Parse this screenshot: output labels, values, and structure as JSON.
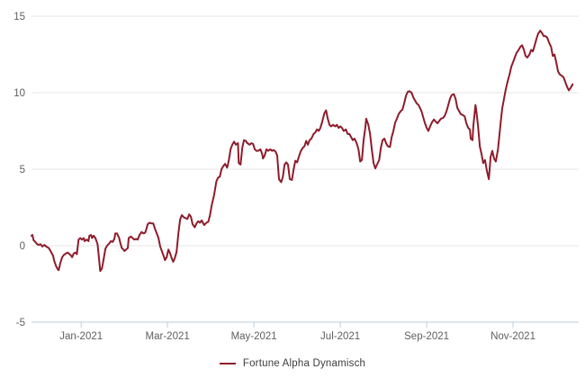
{
  "chart_data": {
    "type": "line",
    "title": "",
    "xlabel": "",
    "ylabel": "",
    "x_unit": "months relative to the Jan-2021 tick",
    "x_range": [
      -1.15,
      11.52
    ],
    "y_range": [
      -5,
      15
    ],
    "grid": true,
    "grid_color": "#e6e6e6",
    "axis_line_color": "#b9cedf",
    "tick_label_color": "#5f5f5f",
    "background_color": "#ffffff",
    "y_ticks": [
      {
        "v": -5,
        "label": "-5"
      },
      {
        "v": 0,
        "label": "0"
      },
      {
        "v": 5,
        "label": "5"
      },
      {
        "v": 10,
        "label": "10"
      },
      {
        "v": 15,
        "label": "15"
      }
    ],
    "x_ticks": [
      {
        "t": 0,
        "label": "Jan-2021"
      },
      {
        "t": 2,
        "label": "Mar-2021"
      },
      {
        "t": 4,
        "label": "May-2021"
      },
      {
        "t": 6,
        "label": "Jul-2021"
      },
      {
        "t": 8,
        "label": "Sep-2021"
      },
      {
        "t": 10,
        "label": "Nov-2021"
      }
    ],
    "legend": {
      "label": "Fortune Alpha Dynamisch",
      "position": "bottom-center"
    },
    "series": [
      {
        "name": "Fortune Alpha Dynamisch",
        "color": "#8e1c2b",
        "line_width": 2,
        "points": [
          [
            -1.15,
            0.65
          ],
          [
            -1.13,
            0.7
          ],
          [
            -1.1,
            0.35
          ],
          [
            -1.06,
            0.25
          ],
          [
            -1.02,
            0.1
          ],
          [
            -0.98,
            0.05
          ],
          [
            -0.94,
            0.1
          ],
          [
            -0.9,
            -0.05
          ],
          [
            -0.85,
            0.05
          ],
          [
            -0.81,
            -0.05
          ],
          [
            -0.75,
            -0.15
          ],
          [
            -0.73,
            -0.25
          ],
          [
            -0.69,
            -0.45
          ],
          [
            -0.65,
            -0.65
          ],
          [
            -0.63,
            -0.95
          ],
          [
            -0.58,
            -1.35
          ],
          [
            -0.54,
            -1.55
          ],
          [
            -0.52,
            -1.6
          ],
          [
            -0.48,
            -1.1
          ],
          [
            -0.44,
            -0.75
          ],
          [
            -0.4,
            -0.6
          ],
          [
            -0.35,
            -0.5
          ],
          [
            -0.31,
            -0.45
          ],
          [
            -0.27,
            -0.55
          ],
          [
            -0.23,
            -0.65
          ],
          [
            -0.21,
            -0.75
          ],
          [
            -0.17,
            -0.5
          ],
          [
            -0.13,
            -0.45
          ],
          [
            -0.1,
            -0.55
          ],
          [
            -0.06,
            0.4
          ],
          [
            -0.02,
            0.5
          ],
          [
            0.02,
            0.4
          ],
          [
            0.06,
            0.5
          ],
          [
            0.08,
            0.3
          ],
          [
            0.13,
            0.4
          ],
          [
            0.17,
            0.3
          ],
          [
            0.19,
            0.65
          ],
          [
            0.23,
            0.7
          ],
          [
            0.25,
            0.5
          ],
          [
            0.29,
            0.65
          ],
          [
            0.33,
            0.5
          ],
          [
            0.38,
            0.1
          ],
          [
            0.42,
            -1.0
          ],
          [
            0.44,
            -1.65
          ],
          [
            0.48,
            -1.5
          ],
          [
            0.52,
            -0.9
          ],
          [
            0.56,
            -0.2
          ],
          [
            0.6,
            0.0
          ],
          [
            0.65,
            0.15
          ],
          [
            0.69,
            0.3
          ],
          [
            0.73,
            0.25
          ],
          [
            0.77,
            0.45
          ],
          [
            0.79,
            0.8
          ],
          [
            0.83,
            0.8
          ],
          [
            0.88,
            0.5
          ],
          [
            0.9,
            0.25
          ],
          [
            0.94,
            -0.15
          ],
          [
            0.98,
            -0.25
          ],
          [
            1.0,
            -0.35
          ],
          [
            1.04,
            -0.25
          ],
          [
            1.08,
            -0.15
          ],
          [
            1.1,
            0.5
          ],
          [
            1.15,
            0.6
          ],
          [
            1.19,
            0.5
          ],
          [
            1.23,
            0.4
          ],
          [
            1.27,
            0.45
          ],
          [
            1.31,
            0.4
          ],
          [
            1.35,
            0.7
          ],
          [
            1.4,
            0.9
          ],
          [
            1.44,
            0.8
          ],
          [
            1.48,
            0.85
          ],
          [
            1.5,
            1.0
          ],
          [
            1.54,
            1.4
          ],
          [
            1.58,
            1.5
          ],
          [
            1.63,
            1.45
          ],
          [
            1.67,
            1.45
          ],
          [
            1.71,
            1.1
          ],
          [
            1.75,
            0.8
          ],
          [
            1.79,
            0.5
          ],
          [
            1.83,
            -0.05
          ],
          [
            1.88,
            -0.45
          ],
          [
            1.92,
            -0.75
          ],
          [
            1.94,
            -0.95
          ],
          [
            1.98,
            -0.75
          ],
          [
            2.02,
            -0.25
          ],
          [
            2.06,
            -0.5
          ],
          [
            2.1,
            -0.85
          ],
          [
            2.13,
            -1.05
          ],
          [
            2.17,
            -0.8
          ],
          [
            2.21,
            -0.4
          ],
          [
            2.25,
            0.8
          ],
          [
            2.29,
            1.7
          ],
          [
            2.33,
            2.0
          ],
          [
            2.38,
            1.85
          ],
          [
            2.42,
            1.8
          ],
          [
            2.46,
            1.75
          ],
          [
            2.5,
            2.05
          ],
          [
            2.54,
            1.9
          ],
          [
            2.58,
            1.4
          ],
          [
            2.63,
            1.2
          ],
          [
            2.67,
            1.45
          ],
          [
            2.71,
            1.6
          ],
          [
            2.75,
            1.5
          ],
          [
            2.79,
            1.65
          ],
          [
            2.85,
            1.35
          ],
          [
            2.9,
            1.5
          ],
          [
            2.94,
            1.55
          ],
          [
            2.98,
            1.95
          ],
          [
            3.02,
            2.6
          ],
          [
            3.08,
            3.35
          ],
          [
            3.13,
            4.2
          ],
          [
            3.17,
            4.45
          ],
          [
            3.21,
            4.5
          ],
          [
            3.25,
            5.0
          ],
          [
            3.29,
            5.2
          ],
          [
            3.33,
            5.35
          ],
          [
            3.38,
            5.1
          ],
          [
            3.42,
            5.6
          ],
          [
            3.46,
            6.3
          ],
          [
            3.5,
            6.6
          ],
          [
            3.54,
            6.8
          ],
          [
            3.58,
            6.6
          ],
          [
            3.63,
            6.7
          ],
          [
            3.65,
            5.4
          ],
          [
            3.69,
            5.3
          ],
          [
            3.73,
            6.4
          ],
          [
            3.77,
            6.9
          ],
          [
            3.81,
            6.85
          ],
          [
            3.85,
            6.7
          ],
          [
            3.9,
            6.6
          ],
          [
            3.94,
            6.7
          ],
          [
            3.98,
            6.65
          ],
          [
            4.02,
            6.3
          ],
          [
            4.06,
            6.2
          ],
          [
            4.1,
            6.2
          ],
          [
            4.15,
            6.3
          ],
          [
            4.19,
            6.0
          ],
          [
            4.21,
            5.7
          ],
          [
            4.25,
            5.9
          ],
          [
            4.29,
            6.3
          ],
          [
            4.33,
            6.2
          ],
          [
            4.38,
            6.3
          ],
          [
            4.42,
            6.2
          ],
          [
            4.46,
            6.25
          ],
          [
            4.5,
            6.15
          ],
          [
            4.54,
            5.9
          ],
          [
            4.58,
            4.35
          ],
          [
            4.63,
            4.15
          ],
          [
            4.67,
            4.5
          ],
          [
            4.71,
            5.3
          ],
          [
            4.75,
            5.45
          ],
          [
            4.79,
            5.3
          ],
          [
            4.83,
            4.35
          ],
          [
            4.88,
            4.3
          ],
          [
            4.92,
            5.0
          ],
          [
            4.96,
            5.55
          ],
          [
            5.0,
            5.45
          ],
          [
            5.04,
            5.8
          ],
          [
            5.08,
            6.15
          ],
          [
            5.13,
            6.4
          ],
          [
            5.17,
            6.5
          ],
          [
            5.21,
            6.85
          ],
          [
            5.25,
            6.6
          ],
          [
            5.29,
            6.9
          ],
          [
            5.33,
            7.0
          ],
          [
            5.38,
            7.3
          ],
          [
            5.42,
            7.4
          ],
          [
            5.46,
            7.6
          ],
          [
            5.5,
            7.5
          ],
          [
            5.54,
            7.7
          ],
          [
            5.58,
            8.1
          ],
          [
            5.63,
            8.65
          ],
          [
            5.67,
            8.85
          ],
          [
            5.71,
            8.3
          ],
          [
            5.75,
            7.9
          ],
          [
            5.79,
            7.8
          ],
          [
            5.83,
            7.9
          ],
          [
            5.88,
            7.8
          ],
          [
            5.92,
            7.9
          ],
          [
            5.96,
            7.7
          ],
          [
            6.0,
            7.8
          ],
          [
            6.04,
            7.7
          ],
          [
            6.08,
            7.5
          ],
          [
            6.13,
            7.6
          ],
          [
            6.17,
            7.3
          ],
          [
            6.21,
            7.3
          ],
          [
            6.25,
            7.1
          ],
          [
            6.29,
            6.9
          ],
          [
            6.33,
            7.0
          ],
          [
            6.38,
            6.7
          ],
          [
            6.42,
            6.3
          ],
          [
            6.46,
            5.5
          ],
          [
            6.5,
            5.6
          ],
          [
            6.54,
            6.9
          ],
          [
            6.58,
            7.7
          ],
          [
            6.6,
            8.3
          ],
          [
            6.65,
            7.9
          ],
          [
            6.69,
            7.3
          ],
          [
            6.73,
            6.3
          ],
          [
            6.77,
            5.4
          ],
          [
            6.81,
            5.05
          ],
          [
            6.85,
            5.3
          ],
          [
            6.9,
            5.6
          ],
          [
            6.94,
            6.4
          ],
          [
            6.98,
            6.9
          ],
          [
            7.02,
            7.0
          ],
          [
            7.06,
            6.7
          ],
          [
            7.1,
            6.5
          ],
          [
            7.15,
            6.45
          ],
          [
            7.19,
            7.1
          ],
          [
            7.23,
            7.5
          ],
          [
            7.27,
            8.05
          ],
          [
            7.31,
            8.3
          ],
          [
            7.35,
            8.6
          ],
          [
            7.4,
            8.8
          ],
          [
            7.44,
            8.9
          ],
          [
            7.48,
            9.3
          ],
          [
            7.52,
            9.8
          ],
          [
            7.56,
            10.05
          ],
          [
            7.6,
            10.1
          ],
          [
            7.65,
            10.0
          ],
          [
            7.69,
            9.7
          ],
          [
            7.73,
            9.5
          ],
          [
            7.77,
            9.3
          ],
          [
            7.81,
            9.2
          ],
          [
            7.88,
            8.8
          ],
          [
            7.92,
            8.4
          ],
          [
            7.96,
            8.0
          ],
          [
            8.0,
            7.7
          ],
          [
            8.04,
            7.5
          ],
          [
            8.08,
            7.8
          ],
          [
            8.13,
            8.1
          ],
          [
            8.17,
            8.25
          ],
          [
            8.21,
            8.1
          ],
          [
            8.25,
            8.0
          ],
          [
            8.29,
            8.15
          ],
          [
            8.33,
            8.3
          ],
          [
            8.38,
            8.35
          ],
          [
            8.42,
            8.5
          ],
          [
            8.46,
            8.8
          ],
          [
            8.5,
            9.2
          ],
          [
            8.54,
            9.6
          ],
          [
            8.58,
            9.85
          ],
          [
            8.63,
            9.9
          ],
          [
            8.67,
            9.6
          ],
          [
            8.71,
            9.0
          ],
          [
            8.75,
            8.8
          ],
          [
            8.79,
            8.6
          ],
          [
            8.83,
            8.55
          ],
          [
            8.88,
            8.45
          ],
          [
            8.92,
            8.0
          ],
          [
            8.96,
            7.7
          ],
          [
            9.0,
            7.6
          ],
          [
            9.02,
            7.0
          ],
          [
            9.06,
            6.9
          ],
          [
            9.08,
            7.8
          ],
          [
            9.13,
            9.2
          ],
          [
            9.15,
            8.8
          ],
          [
            9.19,
            7.8
          ],
          [
            9.23,
            6.5
          ],
          [
            9.27,
            6.0
          ],
          [
            9.31,
            5.4
          ],
          [
            9.35,
            5.6
          ],
          [
            9.4,
            4.8
          ],
          [
            9.44,
            4.35
          ],
          [
            9.48,
            5.8
          ],
          [
            9.52,
            6.2
          ],
          [
            9.56,
            5.7
          ],
          [
            9.6,
            5.5
          ],
          [
            9.65,
            6.3
          ],
          [
            9.69,
            7.4
          ],
          [
            9.73,
            8.5
          ],
          [
            9.75,
            9.0
          ],
          [
            9.79,
            9.6
          ],
          [
            9.83,
            10.2
          ],
          [
            9.88,
            10.8
          ],
          [
            9.92,
            11.2
          ],
          [
            9.96,
            11.7
          ],
          [
            10.0,
            12.0
          ],
          [
            10.04,
            12.3
          ],
          [
            10.08,
            12.6
          ],
          [
            10.13,
            12.8
          ],
          [
            10.17,
            13.0
          ],
          [
            10.21,
            13.1
          ],
          [
            10.25,
            12.8
          ],
          [
            10.29,
            12.4
          ],
          [
            10.33,
            12.3
          ],
          [
            10.38,
            12.5
          ],
          [
            10.42,
            12.8
          ],
          [
            10.46,
            12.7
          ],
          [
            10.5,
            13.1
          ],
          [
            10.54,
            13.5
          ],
          [
            10.58,
            13.85
          ],
          [
            10.63,
            14.05
          ],
          [
            10.67,
            13.9
          ],
          [
            10.71,
            13.7
          ],
          [
            10.75,
            13.7
          ],
          [
            10.79,
            13.6
          ],
          [
            10.83,
            13.3
          ],
          [
            10.88,
            13.0
          ],
          [
            10.92,
            12.4
          ],
          [
            10.96,
            12.5
          ],
          [
            11.0,
            12.0
          ],
          [
            11.04,
            11.4
          ],
          [
            11.08,
            11.2
          ],
          [
            11.13,
            11.1
          ],
          [
            11.17,
            11.0
          ],
          [
            11.21,
            10.7
          ],
          [
            11.25,
            10.4
          ],
          [
            11.29,
            10.15
          ],
          [
            11.33,
            10.3
          ],
          [
            11.38,
            10.55
          ]
        ]
      }
    ]
  }
}
